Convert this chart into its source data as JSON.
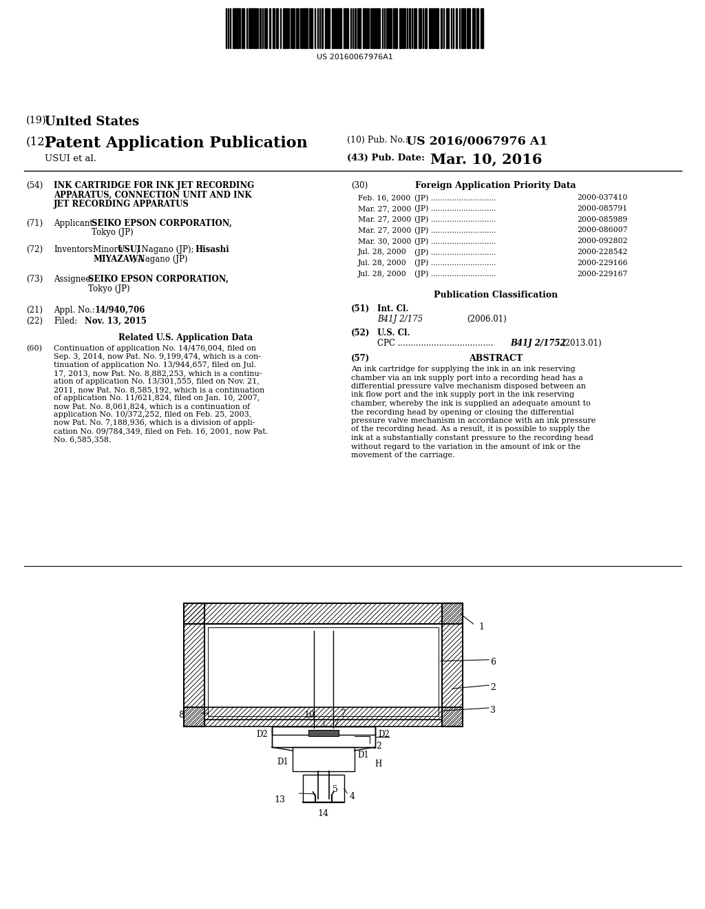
{
  "bg": "#ffffff",
  "barcode_number": "US 20160067976A1",
  "h19": "United States",
  "h12": "Patent Application Publication",
  "pub_no_lbl": "(10) Pub. No.:",
  "pub_no_val": "US 2016/0067976 A1",
  "author": "USUI et al.",
  "pub_date_lbl": "(43) Pub. Date:",
  "pub_date_val": "Mar. 10, 2016",
  "f54_lines": [
    "INK CARTRIDGE FOR INK JET RECORDING",
    "APPARATUS, CONNECTION UNIT AND INK",
    "JET RECORDING APPARATUS"
  ],
  "f30_hdr": "Foreign Application Priority Data",
  "priority": [
    [
      "Feb. 16, 2000",
      "(JP) ............................",
      "2000-037410"
    ],
    [
      "Mar. 27, 2000",
      "(JP) ............................",
      "2000-085791"
    ],
    [
      "Mar. 27, 2000",
      "(JP) ............................",
      "2000-085989"
    ],
    [
      "Mar. 27, 2000",
      "(JP) ............................",
      "2000-086007"
    ],
    [
      "Mar. 30, 2000",
      "(JP) ............................",
      "2000-092802"
    ],
    [
      "Jul. 28, 2000",
      "(JP) ............................",
      "2000-228542"
    ],
    [
      "Jul. 28, 2000",
      "(JP) ............................",
      "2000-229166"
    ],
    [
      "Jul. 28, 2000",
      "(JP) ............................",
      "2000-229167"
    ]
  ],
  "f71_normal": "Applicant:",
  "f71_bold": "SEIKO EPSON CORPORATION,",
  "f71_loc": "Tokyo (JP)",
  "f72_normal": "Inventors:",
  "f72_bold1": "Minoru USUI",
  "f72_mid": ", Nagano (JP);",
  "f72_bold2": "Hisashi",
  "f72_bold3": "MIYAZAWA",
  "f72_loc": ", Nagano (JP)",
  "f73_normal": "Assignee:",
  "f73_bold": "SEIKO EPSON CORPORATION,",
  "f73_loc": "Tokyo (JP)",
  "f21_text": "14/940,706",
  "f22_text": "Nov. 13, 2015",
  "related_hdr": "Related U.S. Application Data",
  "f60_lines": [
    "Continuation of application No. 14/476,004, filed on",
    "Sep. 3, 2014, now Pat. No. 9,199,474, which is a con-",
    "tinuation of application No. 13/944,657, filed on Jul.",
    "17, 2013, now Pat. No. 8,882,253, which is a continu-",
    "ation of application No. 13/301,555, filed on Nov. 21,",
    "2011, now Pat. No. 8,585,192, which is a continuation",
    "of application No. 11/621,824, filed on Jan. 10, 2007,",
    "now Pat. No. 8,061,824, which is a continuation of",
    "application No. 10/372,252, filed on Feb. 25, 2003,",
    "now Pat. No. 7,188,936, which is a division of appli-",
    "cation No. 09/784,349, filed on Feb. 16, 2001, now Pat.",
    "No. 6,585,358."
  ],
  "pub_class_hdr": "Publication Classification",
  "f51_class": "B41J 2/175",
  "f51_year": "(2006.01)",
  "f52_class": "B41J 2/1752",
  "f52_year": "(2013.01)",
  "f57_hdr": "ABSTRACT",
  "f57_lines": [
    "An ink cartridge for supplying the ink in an ink reserving",
    "chamber via an ink supply port into a recording head has a",
    "differential pressure valve mechanism disposed between an",
    "ink flow port and the ink supply port in the ink reserving",
    "chamber, whereby the ink is supplied an adequate amount to",
    "the recording head by opening or closing the differential",
    "pressure valve mechanism in accordance with an ink pressure",
    "of the recording head. As a result, it is possible to supply the",
    "ink at a substantially constant pressure to the recording head",
    "without regard to the variation in the amount of ink or the",
    "movement of the carriage."
  ]
}
